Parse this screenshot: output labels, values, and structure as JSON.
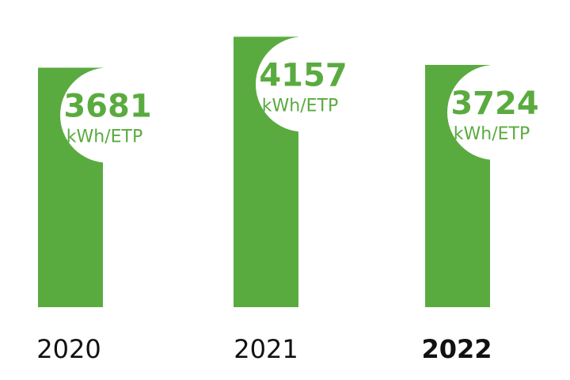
{
  "chart_data": {
    "type": "bar",
    "categories": [
      "2020",
      "2021",
      "2022"
    ],
    "values": [
      3681,
      4157,
      3724
    ],
    "value_labels": [
      "3681",
      "4157",
      "3724"
    ],
    "unit": "kWh/ETP",
    "highlighted_category": "2022",
    "ylim": [
      0,
      4600
    ],
    "grid": false,
    "title": "",
    "xlabel": "",
    "ylabel": ""
  },
  "colors": {
    "bar": "#5aab3f",
    "label": "#5aab3f",
    "background": "#ffffff",
    "year_text": "#111111"
  }
}
